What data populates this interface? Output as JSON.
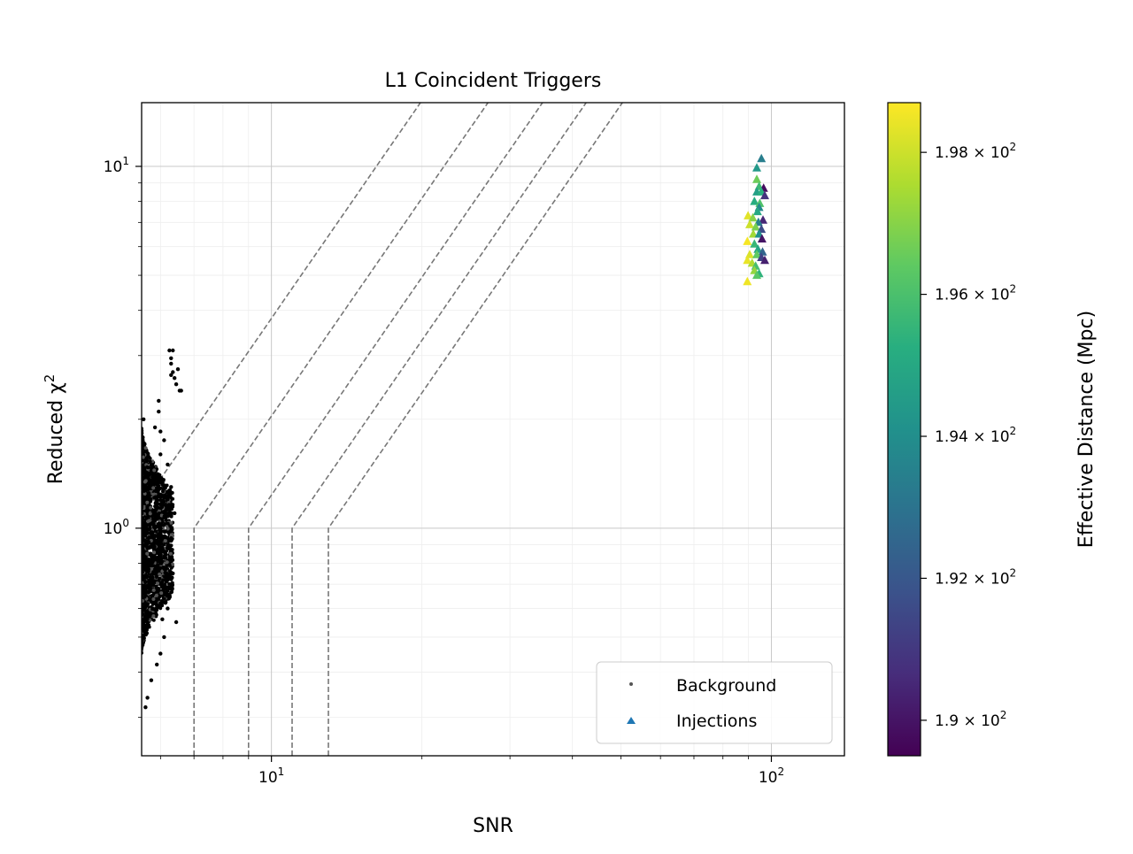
{
  "chart_data": {
    "type": "scatter",
    "title": "L1 Coincident Triggers",
    "xlabel": "SNR",
    "ylabel": "Reduced χ",
    "ylabel_sup": "2",
    "x_scale": "log",
    "y_scale": "log",
    "xlim": [
      5.5,
      140
    ],
    "ylim": [
      0.235,
      15
    ],
    "grid": true,
    "x_ticks": [
      {
        "value": 10,
        "base": "10",
        "exp": "1"
      },
      {
        "value": 100,
        "base": "10",
        "exp": "2"
      }
    ],
    "y_ticks": [
      {
        "value": 1,
        "base": "10",
        "exp": "0"
      },
      {
        "value": 10,
        "base": "10",
        "exp": "1"
      }
    ],
    "legend": {
      "position": "lower right",
      "entries": [
        {
          "label": "Background",
          "marker": "dot",
          "color": "#555555"
        },
        {
          "label": "Injections",
          "marker": "triangle",
          "color": "#1f77b4"
        }
      ]
    },
    "series": [
      {
        "name": "Background",
        "marker": "dot",
        "color": "#000000",
        "points": [
          [
            6.25,
            3.1
          ],
          [
            6.35,
            3.1
          ],
          [
            6.3,
            2.95
          ],
          [
            6.3,
            2.65
          ],
          [
            6.4,
            2.6
          ],
          [
            6.45,
            2.5
          ],
          [
            6.55,
            2.4
          ],
          [
            6.6,
            2.4
          ],
          [
            6.35,
            2.7
          ],
          [
            6.5,
            2.75
          ],
          [
            6.3,
            2.85
          ],
          [
            5.95,
            2.25
          ],
          [
            5.95,
            2.1
          ],
          [
            6.0,
            1.85
          ],
          [
            5.85,
            1.9
          ],
          [
            6.1,
            1.75
          ],
          [
            6.0,
            1.6
          ],
          [
            6.2,
            1.5
          ],
          [
            6.3,
            1.3
          ],
          [
            6.4,
            1.1
          ],
          [
            6.35,
            0.75
          ],
          [
            6.45,
            0.55
          ],
          [
            6.2,
            0.6
          ],
          [
            6.1,
            0.5
          ],
          [
            6.0,
            0.45
          ],
          [
            5.9,
            0.42
          ],
          [
            5.75,
            0.38
          ],
          [
            5.6,
            0.32
          ],
          [
            5.65,
            0.34
          ],
          [
            6.05,
            0.56
          ],
          [
            5.55,
            2.0
          ]
        ]
      },
      {
        "name": "Injections",
        "marker": "triangle",
        "colormap": "viridis",
        "points": [
          [
            95.5,
            10.5,
            193.4
          ],
          [
            93.5,
            9.9,
            194.4
          ],
          [
            93.5,
            9.2,
            196.6
          ],
          [
            94.5,
            8.8,
            195.7
          ],
          [
            96.5,
            8.7,
            189.8
          ],
          [
            93.5,
            8.5,
            194.7
          ],
          [
            95.5,
            8.5,
            195.3
          ],
          [
            97,
            8.3,
            190.8
          ],
          [
            92.5,
            8.0,
            195.2
          ],
          [
            94.8,
            7.9,
            196.1
          ],
          [
            94.5,
            7.7,
            193.8
          ],
          [
            93.8,
            7.5,
            195.0
          ],
          [
            89.8,
            7.3,
            198.3
          ],
          [
            91.8,
            7.2,
            197.0
          ],
          [
            96.2,
            7.1,
            190.5
          ],
          [
            94.2,
            7.0,
            193.5
          ],
          [
            90.5,
            6.9,
            198.0
          ],
          [
            93.0,
            6.8,
            196.8
          ],
          [
            95.5,
            6.7,
            191.6
          ],
          [
            92.0,
            6.5,
            197.4
          ],
          [
            94.5,
            6.5,
            194.1
          ],
          [
            95.8,
            6.3,
            190.0
          ],
          [
            89.5,
            6.2,
            198.6
          ],
          [
            92.5,
            6.1,
            195.6
          ],
          [
            94.0,
            5.9,
            194.9
          ],
          [
            96.0,
            5.8,
            192.5
          ],
          [
            90.5,
            5.7,
            198.2
          ],
          [
            93.5,
            5.7,
            196.4
          ],
          [
            95.5,
            5.6,
            191.3
          ],
          [
            97.0,
            5.5,
            190.3
          ],
          [
            89.5,
            5.5,
            198.4
          ],
          [
            91.5,
            5.4,
            197.6
          ],
          [
            93.0,
            5.3,
            195.9
          ],
          [
            92.5,
            5.15,
            197.2
          ],
          [
            94.5,
            5.05,
            195.4
          ],
          [
            89.5,
            4.8,
            198.5
          ],
          [
            93.5,
            5.0,
            196.3
          ]
        ]
      }
    ],
    "reference_curves": {
      "style": "dashed",
      "color": "#777777",
      "count": 4,
      "vertical_snr": [
        7.0,
        9.0,
        11.0,
        13.0
      ]
    },
    "colorbar": {
      "label": "Effective Distance (Mpc)",
      "colormap": "viridis",
      "range": [
        189.5,
        198.7
      ],
      "ticks": [
        {
          "value": 190,
          "mant": "1.9",
          "exp": "2"
        },
        {
          "value": 192,
          "mant": "1.92",
          "exp": "2"
        },
        {
          "value": 194,
          "mant": "1.94",
          "exp": "2"
        },
        {
          "value": 196,
          "mant": "1.96",
          "exp": "2"
        },
        {
          "value": 198,
          "mant": "1.98",
          "exp": "2"
        }
      ]
    }
  }
}
